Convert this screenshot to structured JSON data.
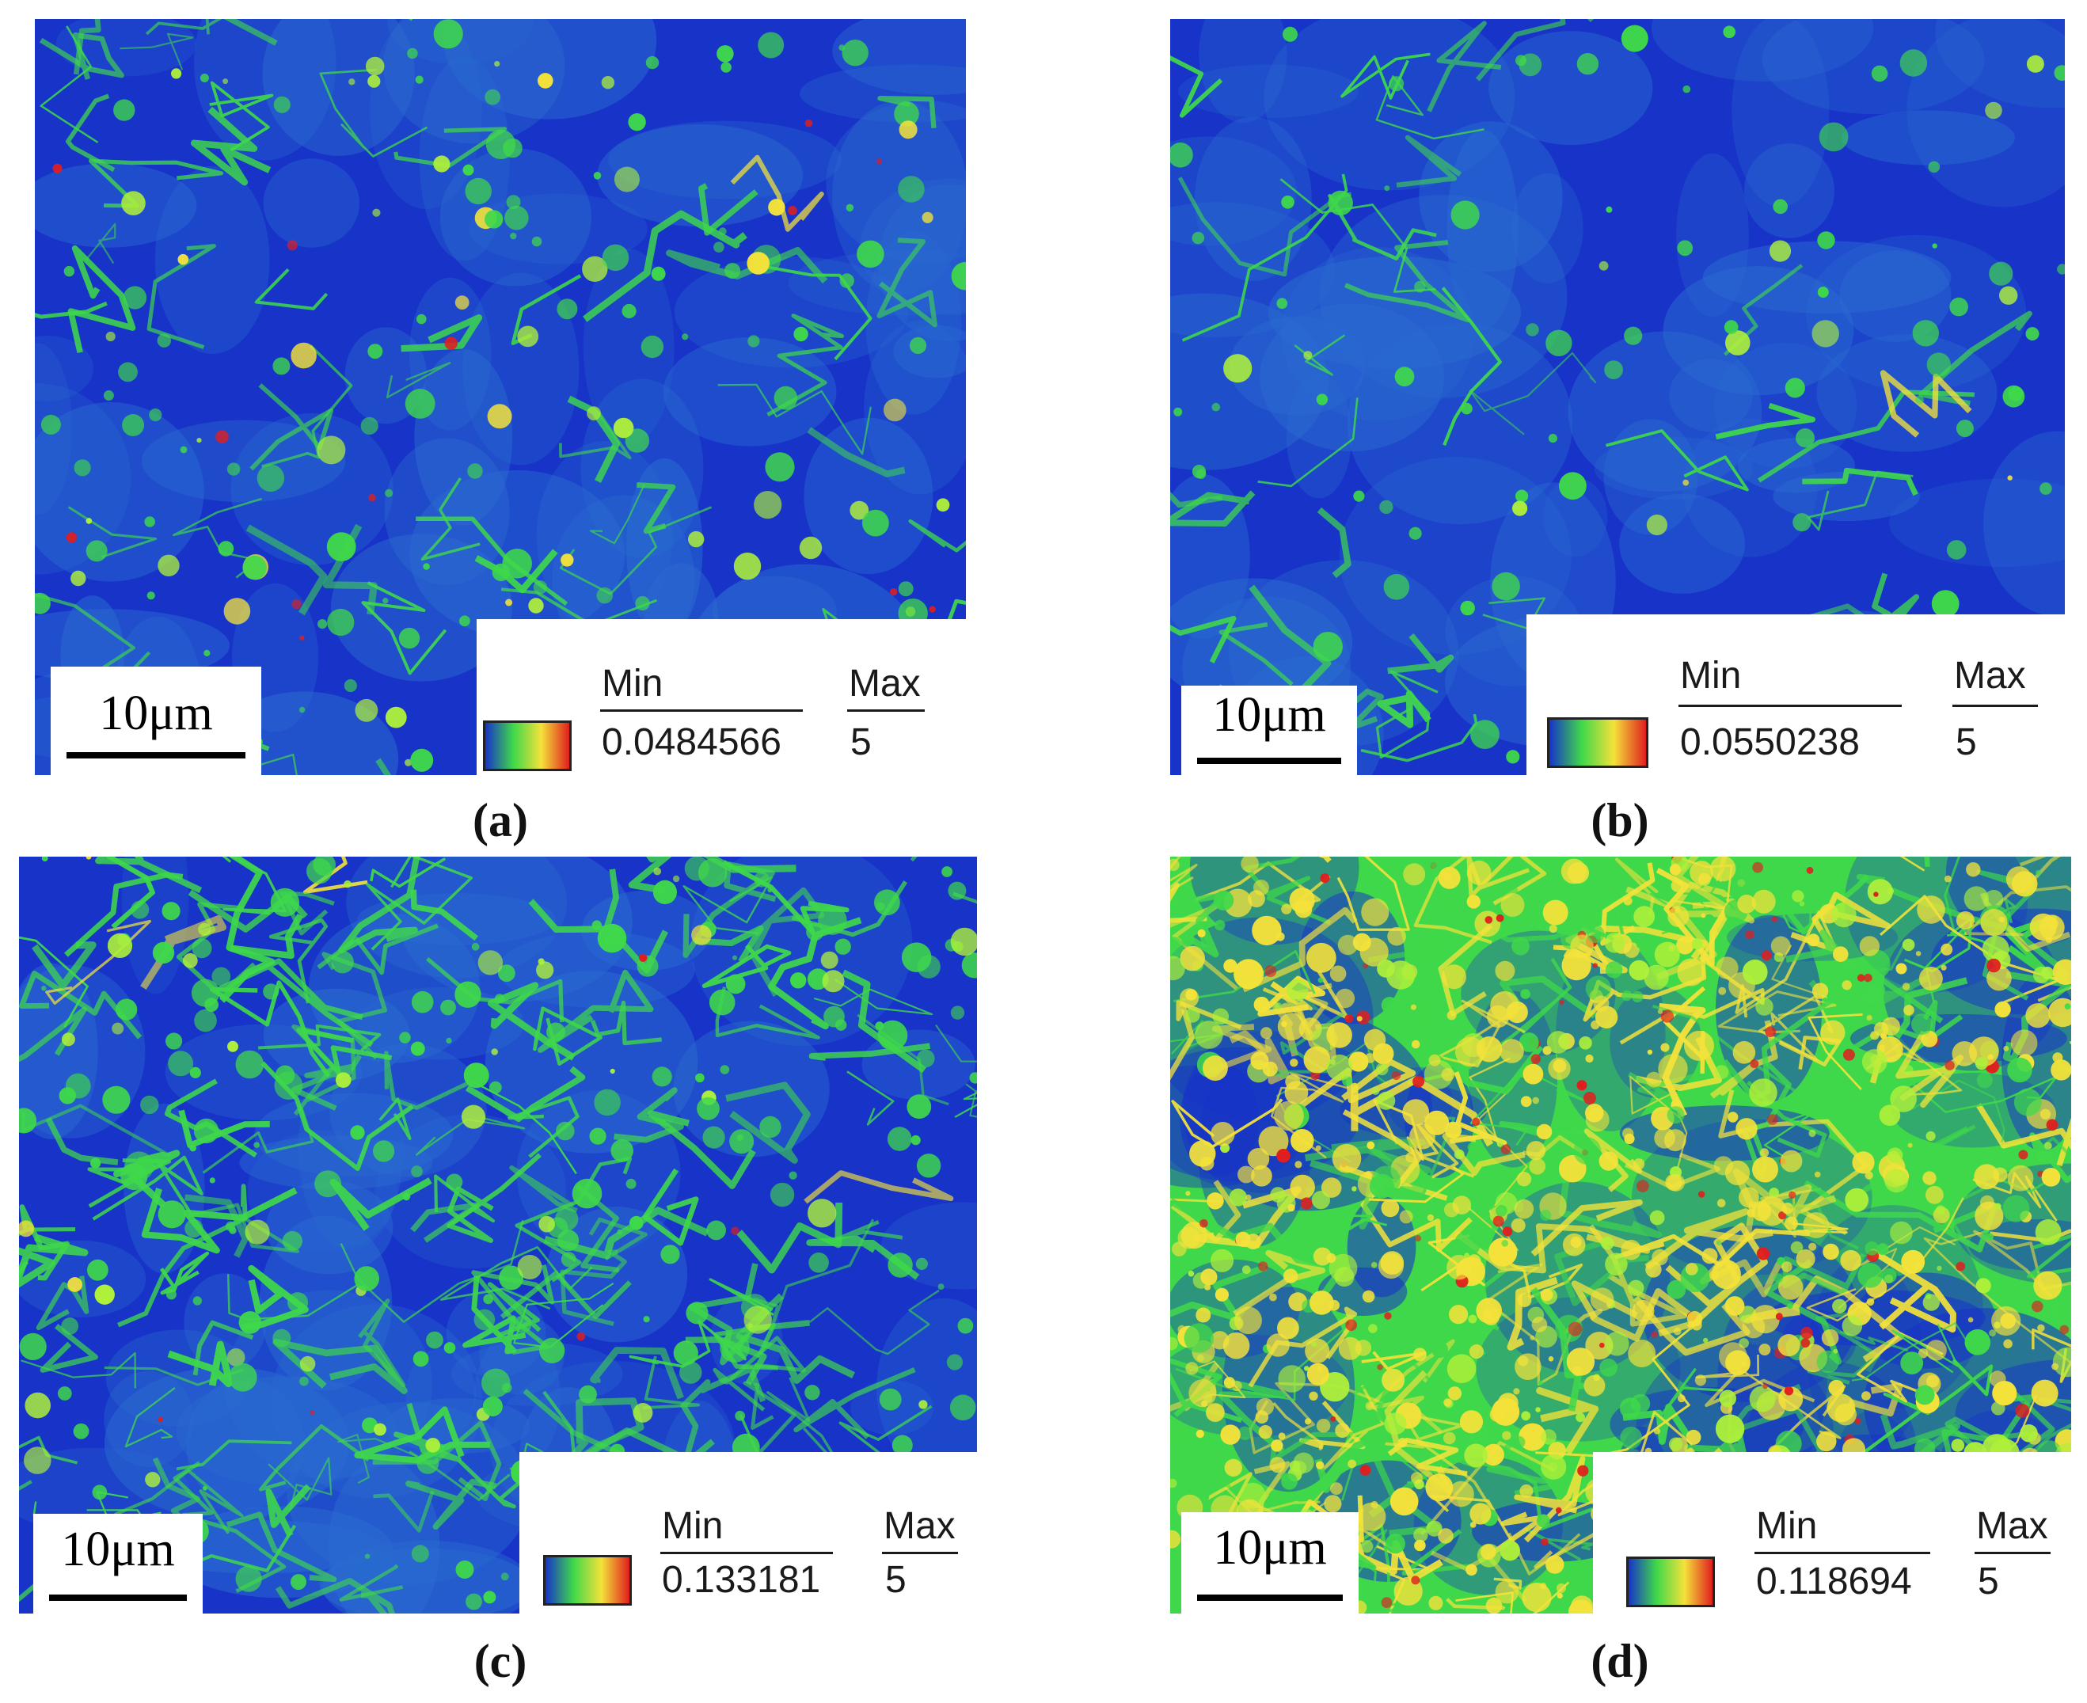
{
  "panels": [
    {
      "caption": "(a)",
      "scale_label": "10μm",
      "legend": {
        "min_label": "Min",
        "max_label": "Max",
        "min_value": "0.0484566",
        "max_value": "5"
      },
      "palette": [
        "#1733c8",
        "#2a6bd0",
        "#3fd84a",
        "#aef03a",
        "#f4e23a",
        "#e01e1e"
      ]
    },
    {
      "caption": "(b)",
      "scale_label": "10μm",
      "legend": {
        "min_label": "Min",
        "max_label": "Max",
        "min_value": "0.0550238",
        "max_value": "5"
      },
      "palette": [
        "#1733c8",
        "#2a6bd0",
        "#3fd84a",
        "#aef03a",
        "#f4e23a",
        "#e01e1e"
      ]
    },
    {
      "caption": "(c)",
      "scale_label": "10μm",
      "legend": {
        "min_label": "Min",
        "max_label": "Max",
        "min_value": "0.133181",
        "max_value": "5"
      },
      "palette": [
        "#1733c8",
        "#2a6bd0",
        "#3fd84a",
        "#aef03a",
        "#f4e23a",
        "#e01e1e"
      ]
    },
    {
      "caption": "(d)",
      "scale_label": "10μm",
      "legend": {
        "min_label": "Min",
        "max_label": "Max",
        "min_value": "0.118694",
        "max_value": "5"
      },
      "palette": [
        "#1733c8",
        "#2a6bd0",
        "#3fd84a",
        "#aef03a",
        "#f4e23a",
        "#e01e1e"
      ]
    }
  ],
  "legend_gradient": [
    "#1733c8",
    "#3fd84a",
    "#f4e23a",
    "#e01e1e"
  ]
}
